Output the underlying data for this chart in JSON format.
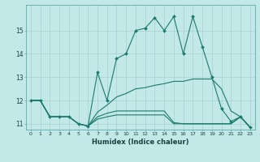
{
  "xlabel": "Humidex (Indice chaleur)",
  "background_color": "#c2e8e8",
  "grid_color": "#a8d0d0",
  "line_color": "#1a7a6e",
  "xlim": [
    -0.5,
    23.5
  ],
  "ylim": [
    10.75,
    16.1
  ],
  "yticks": [
    11,
    12,
    13,
    14,
    15
  ],
  "xticks": [
    0,
    1,
    2,
    3,
    4,
    5,
    6,
    7,
    8,
    9,
    10,
    11,
    12,
    13,
    14,
    15,
    16,
    17,
    18,
    19,
    20,
    21,
    22,
    23
  ],
  "series": [
    {
      "x": [
        0,
        1,
        2,
        3,
        4,
        5,
        6,
        7,
        8,
        9,
        10,
        11,
        12,
        13,
        14,
        15,
        16,
        17,
        18,
        19,
        20,
        21,
        22,
        23
      ],
      "y": [
        12.0,
        12.0,
        11.3,
        11.3,
        11.3,
        11.0,
        10.9,
        13.2,
        12.0,
        13.8,
        14.0,
        15.0,
        15.1,
        15.55,
        15.0,
        15.6,
        14.0,
        15.6,
        14.3,
        13.0,
        11.65,
        11.1,
        11.3,
        10.85
      ],
      "marker": true,
      "lw": 0.8
    },
    {
      "x": [
        0,
        1,
        2,
        3,
        4,
        5,
        6,
        7,
        8,
        9,
        10,
        11,
        12,
        13,
        14,
        15,
        16,
        17,
        18,
        19,
        20,
        21,
        22,
        23
      ],
      "y": [
        12.0,
        12.0,
        11.3,
        11.3,
        11.3,
        11.0,
        10.9,
        11.5,
        11.8,
        12.15,
        12.3,
        12.5,
        12.55,
        12.65,
        12.72,
        12.82,
        12.82,
        12.92,
        12.92,
        12.92,
        12.5,
        11.55,
        11.3,
        10.85
      ],
      "marker": false,
      "lw": 0.8
    },
    {
      "x": [
        0,
        1,
        2,
        3,
        4,
        5,
        6,
        7,
        8,
        9,
        10,
        11,
        12,
        13,
        14,
        15,
        16,
        17,
        18,
        19,
        20,
        21,
        22,
        23
      ],
      "y": [
        12.0,
        12.0,
        11.3,
        11.3,
        11.3,
        11.0,
        10.9,
        11.3,
        11.45,
        11.55,
        11.55,
        11.55,
        11.55,
        11.55,
        11.55,
        11.05,
        11.0,
        11.0,
        11.0,
        11.0,
        11.0,
        11.0,
        11.3,
        10.85
      ],
      "marker": false,
      "lw": 0.8
    },
    {
      "x": [
        0,
        1,
        2,
        3,
        4,
        5,
        6,
        7,
        8,
        9,
        10,
        11,
        12,
        13,
        14,
        15,
        16,
        17,
        18,
        19,
        20,
        21,
        22,
        23
      ],
      "y": [
        12.0,
        12.0,
        11.3,
        11.3,
        11.3,
        11.0,
        10.9,
        11.2,
        11.3,
        11.38,
        11.38,
        11.38,
        11.38,
        11.38,
        11.38,
        11.0,
        11.0,
        11.0,
        11.0,
        11.0,
        11.0,
        11.0,
        11.3,
        10.85
      ],
      "marker": false,
      "lw": 0.8
    }
  ]
}
